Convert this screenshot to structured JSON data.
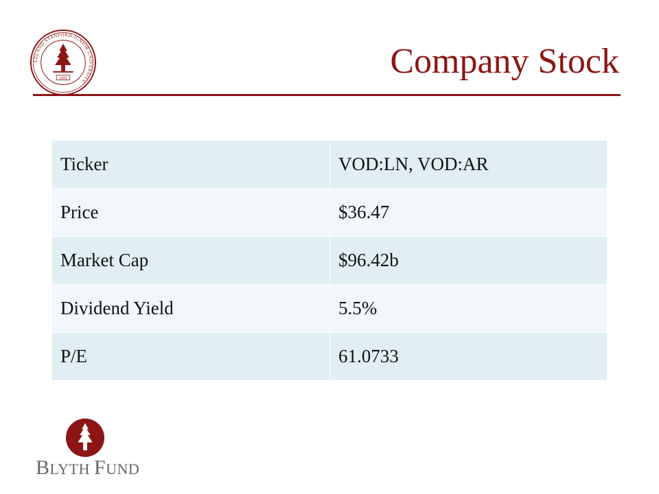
{
  "slide": {
    "title": "Company Stock"
  },
  "table": {
    "rows": [
      {
        "label": "Ticker",
        "value": "VOD:LN, VOD:AR"
      },
      {
        "label": "Price",
        "value": "$36.47"
      },
      {
        "label": "Market Cap",
        "value": "$96.42b"
      },
      {
        "label": "Dividend Yield",
        "value": "5.5%"
      },
      {
        "label": "P/E",
        "value": "61.0733"
      }
    ]
  },
  "branding": {
    "seal_text": "LELAND STANFORD JUNIOR UNIVERSITY",
    "seal_year": "1891",
    "fund_name": "Blyth Fund",
    "fund_name_parts": {
      "b": "B",
      "lyth": "LYTH",
      "f": "F",
      "und": "UND"
    }
  },
  "colors": {
    "accent": "#8c1515",
    "table_row_dark": "#e1eef3",
    "table_row_light": "#f1f7fa",
    "logo_text": "#666666"
  },
  "icons": {
    "seal": "university-seal-icon",
    "tree": "redwood-tree-icon"
  }
}
